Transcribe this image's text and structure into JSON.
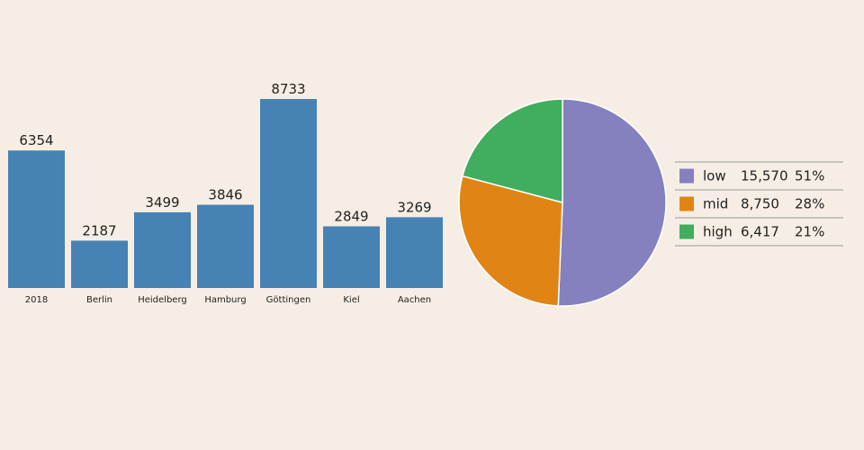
{
  "colors": {
    "background": "#f6eee4",
    "bar": "#4682b4",
    "legend_rule": "#999999"
  },
  "chart_data": [
    {
      "type": "bar",
      "categories": [
        "2018",
        "Berlin",
        "Heidelberg",
        "Hamburg",
        "Göttingen",
        "Kiel",
        "Aachen"
      ],
      "values": [
        6354,
        2187,
        3499,
        3846,
        8733,
        2849,
        3269
      ],
      "data_labels": [
        "6354",
        "2187",
        "3499",
        "3846",
        "8733",
        "2849",
        "3269"
      ],
      "ylim": [
        0,
        8733
      ],
      "grid": false
    },
    {
      "type": "pie",
      "slices": [
        {
          "label": "low",
          "value": 15570,
          "value_label": "15,570",
          "percent_label": "51%",
          "color": "#8580be"
        },
        {
          "label": "mid",
          "value": 8750,
          "value_label": "8,750",
          "percent_label": "28%",
          "color": "#e08514"
        },
        {
          "label": "high",
          "value": 6417,
          "value_label": "6,417",
          "percent_label": "21%",
          "color": "#41ad5e"
        }
      ],
      "legend_position": "right"
    }
  ]
}
